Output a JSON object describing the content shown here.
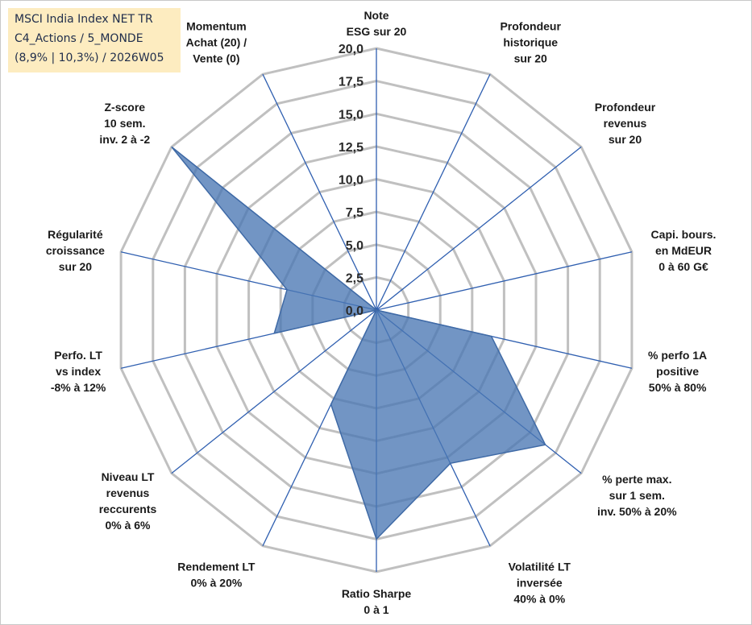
{
  "chart_data": {
    "type": "radar",
    "title_lines": [
      "MSCI India Index NET TR",
      "C4_Actions / 5_MONDE",
      "(8,9% | 10,3%) / 2026W05"
    ],
    "rlim": [
      0,
      20
    ],
    "ticks": [
      "0,0",
      "2,5",
      "5,0",
      "7,5",
      "10,0",
      "12,5",
      "15,0",
      "17,5",
      "20,0"
    ],
    "categories": [
      [
        "Note",
        "ESG sur 20"
      ],
      [
        "Profondeur",
        "historique",
        "sur 20"
      ],
      [
        "Profondeur",
        "revenus",
        "sur 20"
      ],
      [
        "Capi. bours.",
        "en MdEUR",
        "0 à 60 G€"
      ],
      [
        "% perfo 1A",
        "positive",
        "50% à 80%"
      ],
      [
        "% perte max.",
        "sur 1 sem.",
        "inv. 50% à 20%"
      ],
      [
        "Volatilité LT",
        "inversée",
        "40% à 0%"
      ],
      [
        "Ratio Sharpe",
        "0 à 1"
      ],
      [
        "Rendement LT",
        "0% à 20%"
      ],
      [
        "Niveau LT",
        "revenus",
        "reccurents",
        "0% à 6%"
      ],
      [
        "Perfo. LT",
        "vs index",
        "-8% à 12%"
      ],
      [
        "Régularité",
        "croissance",
        "sur 20"
      ],
      [
        "Z-score",
        "10 sem.",
        "inv. 2 à -2"
      ],
      [
        "Momentum",
        "Achat (20) /",
        "Vente (0)"
      ]
    ],
    "series": [
      {
        "name": "MSCI India Index NET TR",
        "values": [
          0,
          0,
          0,
          0,
          9,
          16.5,
          13,
          17.5,
          8,
          0,
          8,
          7,
          20,
          0
        ]
      }
    ],
    "colors": {
      "fill": "#4a77b4",
      "stroke": "#3f6aa6",
      "grid": "#c0c0c0",
      "spoke": "#2f5fb0",
      "legend_bg": "#fdecc0"
    }
  }
}
